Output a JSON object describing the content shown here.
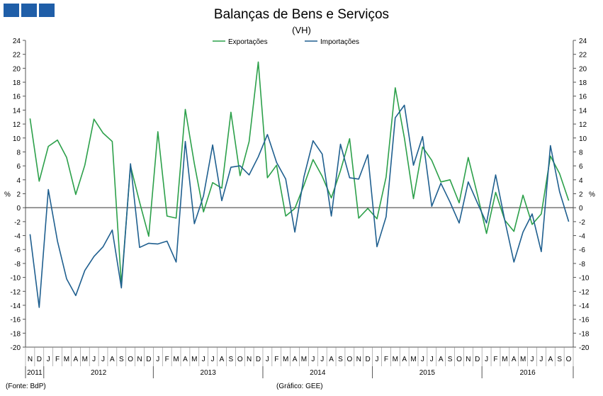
{
  "logo": {
    "icon": "brand-squares-icon",
    "color": "#1f5ea8"
  },
  "chart_data": {
    "type": "line",
    "title": "Balanças de Bens e Serviços",
    "subtitle": "(VH)",
    "ylabel_left": "%",
    "ylabel_right": "%",
    "ylim": [
      -20,
      24
    ],
    "yticks": [
      -20,
      -18,
      -16,
      -14,
      -12,
      -10,
      -8,
      -6,
      -4,
      -2,
      0,
      2,
      4,
      6,
      8,
      10,
      12,
      14,
      16,
      18,
      20,
      22,
      24
    ],
    "grid": false,
    "legend": "top-center",
    "months": [
      "N",
      "D",
      "J",
      "F",
      "M",
      "A",
      "M",
      "J",
      "J",
      "A",
      "S",
      "O",
      "N",
      "D",
      "J",
      "F",
      "M",
      "A",
      "M",
      "J",
      "J",
      "A",
      "S",
      "O",
      "N",
      "D",
      "J",
      "F",
      "M",
      "A",
      "M",
      "J",
      "J",
      "A",
      "S",
      "O",
      "N",
      "D",
      "J",
      "F",
      "M",
      "A",
      "M",
      "J",
      "J",
      "A",
      "S",
      "O",
      "N",
      "D",
      "J",
      "F",
      "M",
      "A",
      "M",
      "J",
      "J",
      "A",
      "S",
      "O"
    ],
    "years": [
      {
        "label": "2011",
        "start": 0,
        "count": 2
      },
      {
        "label": "2012",
        "start": 2,
        "count": 12
      },
      {
        "label": "2013",
        "start": 14,
        "count": 12
      },
      {
        "label": "2014",
        "start": 26,
        "count": 12
      },
      {
        "label": "2015",
        "start": 38,
        "count": 12
      },
      {
        "label": "2016",
        "start": 50,
        "count": 10
      }
    ],
    "series": [
      {
        "name": "Exportações",
        "color": "#2ca04a",
        "values": [
          12.8,
          3.8,
          8.8,
          9.7,
          7.2,
          1.9,
          6.1,
          12.7,
          10.7,
          9.5,
          -11.0,
          6.0,
          0.8,
          -4.1,
          10.9,
          -1.2,
          -1.5,
          14.1,
          6.3,
          -0.6,
          3.6,
          2.8,
          13.7,
          4.6,
          9.5,
          20.9,
          4.3,
          6.1,
          -1.2,
          -0.1,
          3.2,
          6.9,
          4.5,
          1.4,
          5.3,
          9.9,
          -1.5,
          -0.1,
          -1.6,
          4.4,
          17.2,
          10.0,
          1.3,
          8.7,
          6.8,
          3.7,
          4.0,
          0.7,
          7.2,
          1.9,
          -3.7,
          2.2,
          -1.8,
          -3.4,
          1.8,
          -2.4,
          -0.9,
          7.4,
          4.9,
          1.0
        ]
      },
      {
        "name": "Importações",
        "color": "#1f5f8f",
        "values": [
          -3.8,
          -14.3,
          2.6,
          -4.8,
          -10.2,
          -12.6,
          -9.0,
          -7.0,
          -5.6,
          -3.2,
          -11.5,
          6.3,
          -5.7,
          -5.1,
          -5.2,
          -4.8,
          -7.8,
          9.5,
          -2.3,
          1.7,
          9.0,
          1.0,
          5.8,
          6.0,
          4.7,
          7.3,
          10.5,
          6.5,
          4.1,
          -3.5,
          4.4,
          9.6,
          7.7,
          -1.2,
          9.1,
          4.3,
          4.1,
          7.6,
          -5.6,
          -1.3,
          12.9,
          14.7,
          6.1,
          10.2,
          0.2,
          3.5,
          0.8,
          -2.2,
          3.7,
          0.7,
          -2.2,
          4.7,
          -1.8,
          -7.8,
          -3.5,
          -0.9,
          -6.3,
          8.9,
          2.3,
          -2.0
        ]
      }
    ]
  },
  "footer": {
    "source": "(Fonte: BdP)",
    "graph_credit": "(Gráfico: GEE)"
  }
}
